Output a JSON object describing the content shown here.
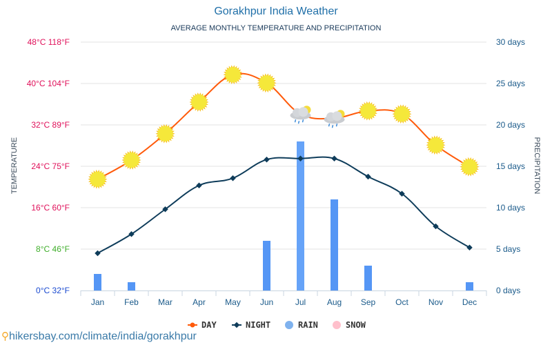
{
  "chart_data": {
    "type": "line",
    "title": "Gorakhpur India Weather",
    "subtitle": "AVERAGE MONTHLY TEMPERATURE AND PRECIPITATION",
    "categories": [
      "Jan",
      "Feb",
      "Mar",
      "Apr",
      "May",
      "Jun",
      "Jul",
      "Aug",
      "Sep",
      "Oct",
      "Nov",
      "Dec"
    ],
    "series": [
      {
        "name": "DAY",
        "kind": "line",
        "axis": "left",
        "color": "#ff5a0a",
        "unit": "°C",
        "values": [
          21.5,
          25.2,
          30.3,
          36.4,
          41.7,
          40.1,
          34.1,
          33.3,
          34.7,
          34.1,
          28.1,
          23.9
        ],
        "markers": [
          "sun",
          "sun",
          "sun",
          "sun",
          "sun",
          "sun",
          "cloud-rain",
          "cloud-rain",
          "sun",
          "sun",
          "sun",
          "sun"
        ]
      },
      {
        "name": "NIGHT",
        "kind": "line",
        "axis": "left",
        "color": "#0e3c5a",
        "unit": "°C",
        "values": [
          7.2,
          10.9,
          15.7,
          20.3,
          21.7,
          25.3,
          25.5,
          25.5,
          22.0,
          18.7,
          12.4,
          8.3
        ]
      },
      {
        "name": "RAIN",
        "kind": "bar",
        "axis": "right",
        "color": "#5596f5",
        "unit": "days",
        "values": [
          2,
          1,
          0,
          0,
          0,
          6,
          18,
          11,
          3,
          0,
          0,
          1
        ]
      },
      {
        "name": "SNOW",
        "kind": "bar",
        "axis": "right",
        "color": "#ffb6c8",
        "unit": "days",
        "values": [
          0,
          0,
          0,
          0,
          0,
          0,
          0,
          0,
          0,
          0,
          0,
          0
        ]
      }
    ],
    "yleft": {
      "label": "TEMPERATURE",
      "range": [
        0,
        48
      ],
      "ticks": [
        {
          "value": 48,
          "label": "48°C 118°F",
          "color": "#e0105a"
        },
        {
          "value": 40,
          "label": "40°C 104°F",
          "color": "#e0105a"
        },
        {
          "value": 32,
          "label": "32°C 89°F",
          "color": "#e0105a"
        },
        {
          "value": 24,
          "label": "24°C 75°F",
          "color": "#e0105a"
        },
        {
          "value": 16,
          "label": "16°C 60°F",
          "color": "#e0105a"
        },
        {
          "value": 8,
          "label": "8°C 46°F",
          "color": "#3fae2a"
        },
        {
          "value": 0,
          "label": "0°C 32°F",
          "color": "#1a4ad0"
        }
      ]
    },
    "yright": {
      "label": "PRECIPITATION",
      "range": [
        0,
        30
      ],
      "ticks": [
        {
          "value": 30,
          "label": "30 days"
        },
        {
          "value": 25,
          "label": "25 days"
        },
        {
          "value": 20,
          "label": "20 days"
        },
        {
          "value": 15,
          "label": "15 days"
        },
        {
          "value": 10,
          "label": "10 days"
        },
        {
          "value": 5,
          "label": "5 days"
        },
        {
          "value": 0,
          "label": "0 days"
        }
      ]
    },
    "grid": true,
    "legend_position": "bottom-center",
    "legend": [
      {
        "name": "DAY",
        "color": "#ff5a0a",
        "shape": "line-dot"
      },
      {
        "name": "NIGHT",
        "color": "#0e3c5a",
        "shape": "line-diamond"
      },
      {
        "name": "RAIN",
        "color": "#7fb2ee",
        "shape": "circle"
      },
      {
        "name": "SNOW",
        "color": "#ffc0cc",
        "shape": "circle"
      }
    ]
  },
  "footer": {
    "url": "hikersbay.com/climate/india/gorakhpur"
  }
}
